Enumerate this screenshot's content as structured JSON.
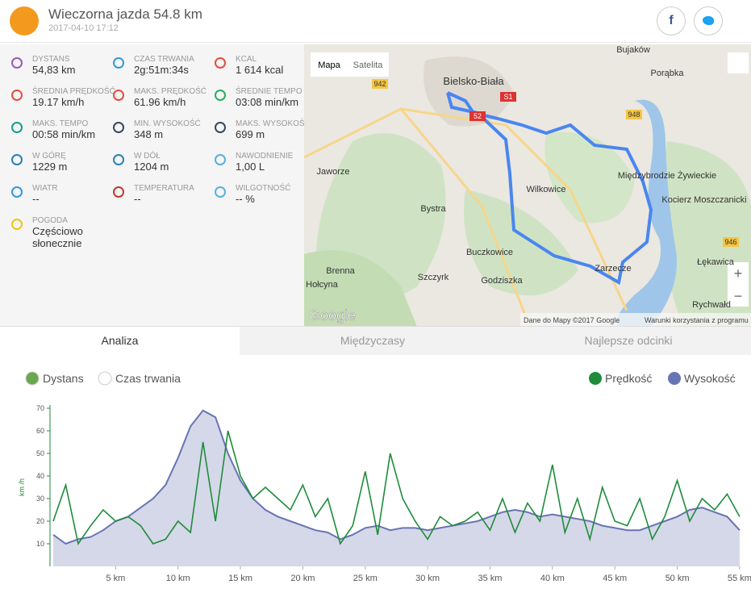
{
  "header": {
    "title": "Wieczorna jazda 54.8 km",
    "date": "2017-04-10 17:12"
  },
  "stats": [
    {
      "label": "DYSTANS",
      "value": "54,83 km"
    },
    {
      "label": "CZAS TRWANIA",
      "value": "2g:51m:34s"
    },
    {
      "label": "KCAL",
      "value": "1 614 kcal"
    },
    {
      "label": "ŚREDNIA PRĘDKOŚĆ",
      "value": "19.17 km/h"
    },
    {
      "label": "MAKS. PRĘDKOŚĆ",
      "value": "61.96 km/h"
    },
    {
      "label": "ŚREDNIE TEMPO",
      "value": "03:08 min/km"
    },
    {
      "label": "MAKS. TEMPO",
      "value": "00:58 min/km"
    },
    {
      "label": "MIN. WYSOKOŚĆ",
      "value": "348 m"
    },
    {
      "label": "MAKS. WYSOKOŚĆ",
      "value": "699 m"
    },
    {
      "label": "W GÓRĘ",
      "value": "1229 m"
    },
    {
      "label": "W DÓŁ",
      "value": "1204 m"
    },
    {
      "label": "NAWODNIENIE",
      "value": "1,00 L"
    },
    {
      "label": "WIATR",
      "value": "--"
    },
    {
      "label": "TEMPERATURA",
      "value": "--"
    },
    {
      "label": "WILGOTNOŚĆ",
      "value": "-- %"
    },
    {
      "label": "POGODA",
      "value": "Częściowo słonecznie"
    }
  ],
  "map": {
    "buttons": [
      "Mapa",
      "Satelita"
    ],
    "places": [
      "Bielsko-Biała",
      "Jaworze",
      "Bystra",
      "Wilkowice",
      "Międzybrodzie Żywieckie",
      "Buczkowice",
      "Szczyrk",
      "Godziszka",
      "Brenna",
      "Hołcyna",
      "Zarzecze",
      "Kocierz Moszczanicki",
      "Łękawica",
      "Rychwałd",
      "Bujaków",
      "Porąbka"
    ],
    "roads": [
      "942",
      "S1",
      "52",
      "948",
      "946"
    ],
    "logo": "Google",
    "attribution": "Dane do Mapy ©2017 Google",
    "terms": "Warunki korzystania z programu"
  },
  "tabs": [
    "Analiza",
    "Międzyczasy",
    "Najlepsze odcinki"
  ],
  "x_axis_options": [
    "Dystans",
    "Czas trwania"
  ],
  "chart_data": {
    "type": "line",
    "ylabel": "km /h",
    "x": [
      0,
      1,
      2,
      3,
      4,
      5,
      6,
      7,
      8,
      9,
      10,
      11,
      12,
      13,
      14,
      15,
      16,
      17,
      18,
      19,
      20,
      21,
      22,
      23,
      24,
      25,
      26,
      27,
      28,
      29,
      30,
      31,
      32,
      33,
      34,
      35,
      36,
      37,
      38,
      39,
      40,
      41,
      42,
      43,
      44,
      45,
      46,
      47,
      48,
      49,
      50,
      51,
      52,
      53,
      54,
      55
    ],
    "xlim": [
      0,
      55.2
    ],
    "xticks": [
      {
        "value": 5,
        "label": "5 km"
      },
      {
        "value": 10,
        "label": "10 km"
      },
      {
        "value": 15,
        "label": "15 km"
      },
      {
        "value": 20,
        "label": "20 km"
      },
      {
        "value": 25,
        "label": "25 km"
      },
      {
        "value": 30,
        "label": "30 km"
      },
      {
        "value": 35,
        "label": "35 km"
      },
      {
        "value": 40,
        "label": "40 km"
      },
      {
        "value": 45,
        "label": "45 km"
      },
      {
        "value": 50,
        "label": "50 km"
      },
      {
        "value": 55,
        "label": "55 km"
      }
    ],
    "ylim": [
      0,
      70
    ],
    "yticks": [
      10,
      20,
      30,
      40,
      50,
      60,
      70
    ],
    "series": [
      {
        "name": "Prędkość",
        "color": "#1e8c3a",
        "values": [
          20,
          36,
          10,
          18,
          25,
          20,
          22,
          18,
          10,
          12,
          20,
          15,
          55,
          20,
          60,
          40,
          30,
          35,
          30,
          25,
          36,
          22,
          30,
          10,
          18,
          42,
          14,
          50,
          30,
          20,
          12,
          22,
          18,
          20,
          24,
          16,
          30,
          15,
          28,
          20,
          45,
          15,
          30,
          12,
          35,
          20,
          18,
          30,
          12,
          22,
          38,
          20,
          30,
          25,
          32,
          22
        ]
      },
      {
        "name": "Wysokość",
        "color": "#6874b4",
        "values": [
          14,
          10,
          12,
          13,
          16,
          20,
          22,
          26,
          30,
          36,
          48,
          62,
          69,
          66,
          50,
          38,
          30,
          25,
          22,
          20,
          18,
          16,
          15,
          12,
          14,
          17,
          18,
          16,
          17,
          17,
          16,
          17,
          18,
          19,
          20,
          22,
          24,
          25,
          24,
          22,
          23,
          22,
          21,
          20,
          18,
          17,
          16,
          16,
          18,
          20,
          22,
          25,
          26,
          24,
          22,
          16
        ]
      }
    ]
  }
}
